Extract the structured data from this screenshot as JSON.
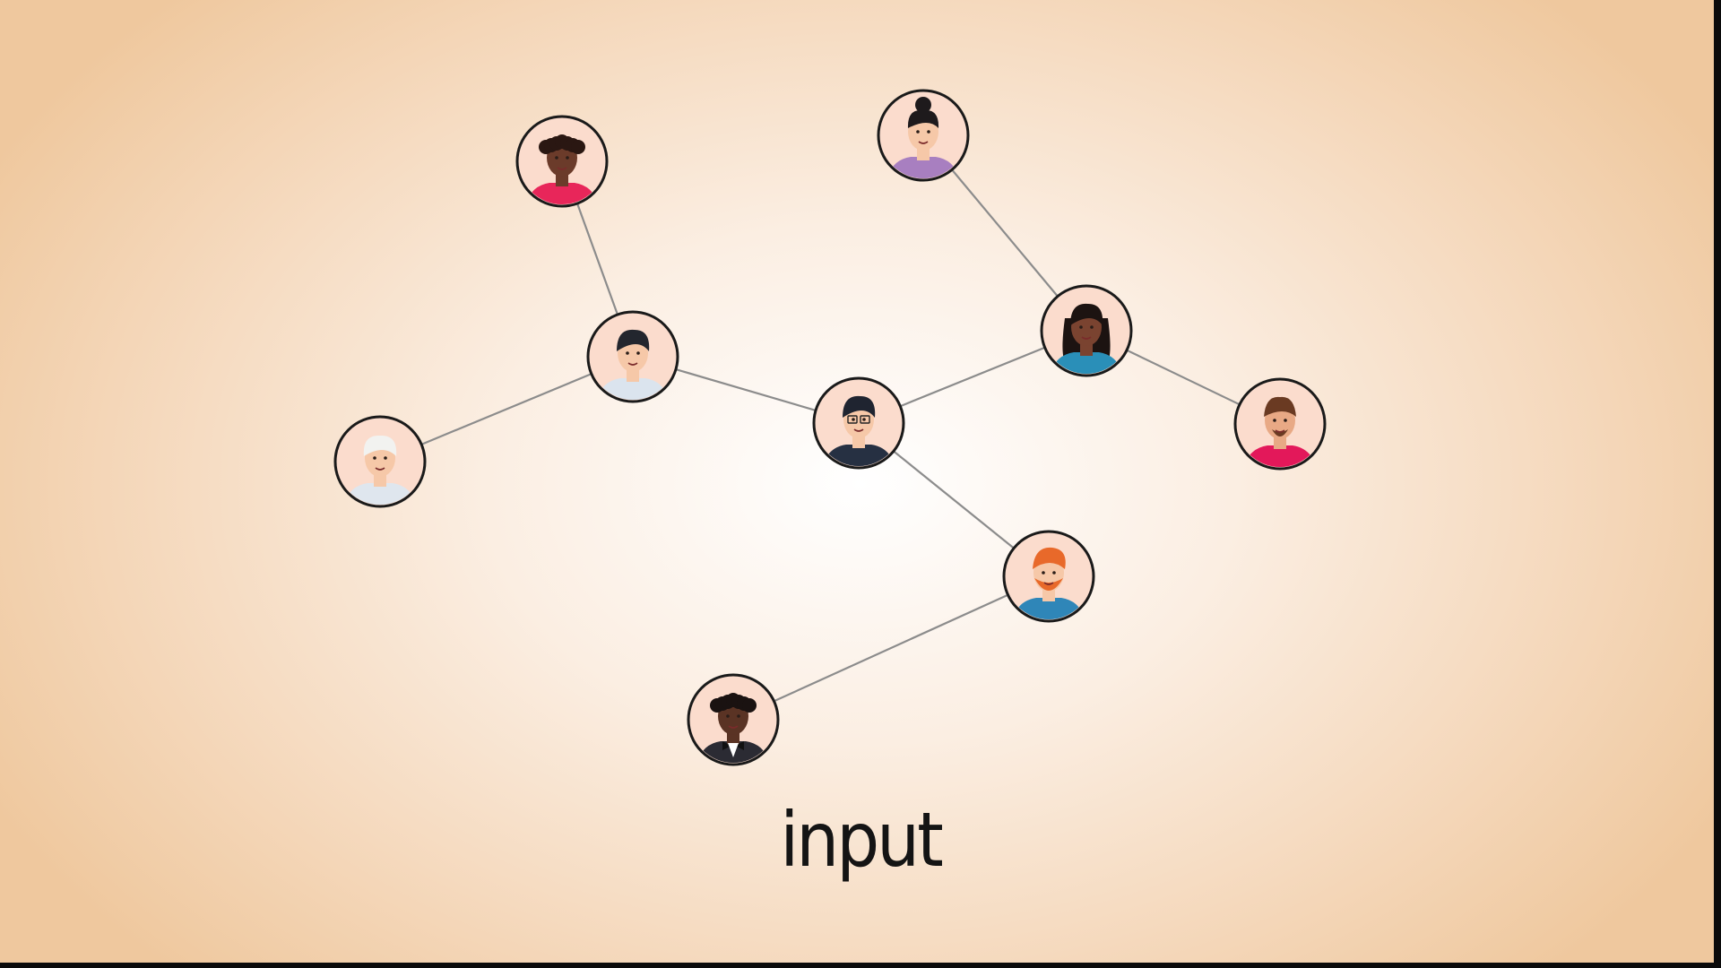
{
  "caption": "input",
  "colors": {
    "edge": "#8c8c8c",
    "node_ring": "#1a1a1a",
    "node_fill": "#fbdccd",
    "skin_light": "#f6c8a8",
    "skin_medium": "#c98e62",
    "skin_dark": "#6b3b2a"
  },
  "nodes": [
    {
      "id": "n1",
      "avatar": "woman-curly-dark-hair-icon"
    },
    {
      "id": "n2",
      "avatar": "woman-hair-bun-icon"
    },
    {
      "id": "n3",
      "avatar": "person-short-dark-hair-icon"
    },
    {
      "id": "n4",
      "avatar": "woman-long-dark-hair-icon"
    },
    {
      "id": "n5",
      "avatar": "elderly-person-white-hair-icon"
    },
    {
      "id": "n6",
      "avatar": "man-glasses-smiling-icon"
    },
    {
      "id": "n7",
      "avatar": "man-beard-icon"
    },
    {
      "id": "n8",
      "avatar": "man-ginger-beard-icon"
    },
    {
      "id": "n9",
      "avatar": "man-bow-tie-icon"
    }
  ],
  "edges": [
    [
      "n1",
      "n3"
    ],
    [
      "n3",
      "n5"
    ],
    [
      "n3",
      "n6"
    ],
    [
      "n6",
      "n4"
    ],
    [
      "n2",
      "n4"
    ],
    [
      "n4",
      "n7"
    ],
    [
      "n6",
      "n8"
    ],
    [
      "n8",
      "n9"
    ]
  ]
}
